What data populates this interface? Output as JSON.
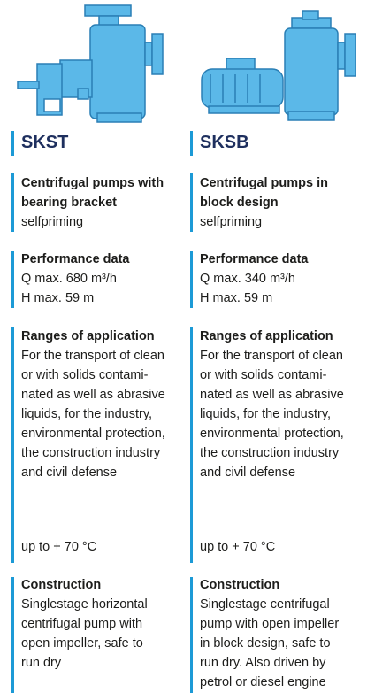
{
  "columns": [
    {
      "model": "SKST",
      "description": {
        "title_lines": [
          "Centrifugal pumps with",
          "bearing bracket"
        ],
        "note": "selfpriming"
      },
      "performance": {
        "heading": "Performance data",
        "lines": [
          "Q max. 680 m³/h",
          "H max. 59 m"
        ]
      },
      "applications": {
        "heading": "Ranges of application",
        "lines": [
          "For the transport of clean",
          "or with solids contami-",
          "nated as well as abrasive",
          "liquids, for the industry,",
          "environmental protection,",
          "the construction industry",
          "and civil defense"
        ],
        "temperature": "up to + 70 °C"
      },
      "construction": {
        "heading": "Construction",
        "lines": [
          "Singlestage horizontal",
          "centrifugal pump with",
          "open impeller, safe to",
          "run dry"
        ]
      }
    },
    {
      "model": "SKSB",
      "description": {
        "title_lines": [
          "Centrifugal pumps in",
          "block design"
        ],
        "note": "selfpriming"
      },
      "performance": {
        "heading": "Performance data",
        "lines": [
          "Q max. 340 m³/h",
          "H max. 59 m"
        ]
      },
      "applications": {
        "heading": "Ranges of application",
        "lines": [
          "For the transport of clean",
          "or with solids contami-",
          "nated as well as abrasive",
          "liquids, for the industry,",
          "environmental protection,",
          "the construction industry",
          "and civil defense"
        ],
        "temperature": "up to + 70 °C"
      },
      "construction": {
        "heading": "Construction",
        "lines": [
          "Singlestage centrifugal",
          "pump with open impeller",
          "in block design, safe to",
          "run dry. Also driven by",
          "petrol or diesel engine"
        ]
      }
    }
  ]
}
